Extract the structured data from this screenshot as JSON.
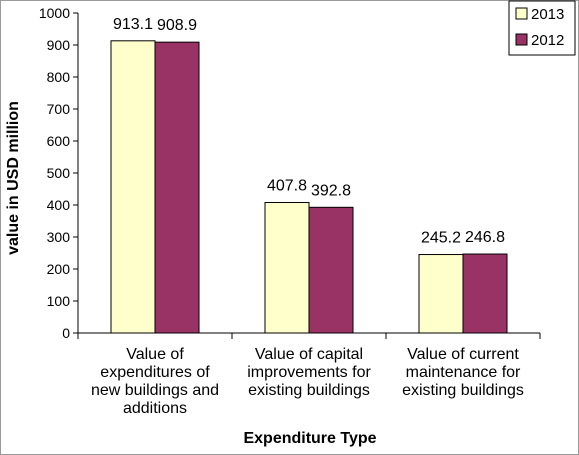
{
  "chart_data": {
    "type": "bar",
    "xlabel": "Expenditure Type",
    "ylabel": "value in USD million",
    "ylim": [
      0,
      1000
    ],
    "yticks": [
      "0",
      "100",
      "200",
      "300",
      "400",
      "500",
      "600",
      "700",
      "800",
      "900",
      "1000"
    ],
    "grid": false,
    "legend_position": "top-right",
    "categories": [
      [
        "Value of",
        "expenditures of",
        "new buildings and",
        "additions"
      ],
      [
        "Value of capital",
        "improvements for",
        "existing buildings"
      ],
      [
        "Value of current",
        "maintenance for",
        "existing buildings"
      ]
    ],
    "series": [
      {
        "name": "2013",
        "color": "#FFFFCC",
        "values": [
          913.1,
          407.8,
          245.2
        ],
        "labels": [
          "913.1",
          "407.8",
          "245.2"
        ]
      },
      {
        "name": "2012",
        "color": "#993366",
        "values": [
          908.9,
          392.8,
          246.8
        ],
        "labels": [
          "908.9",
          "392.8",
          "246.8"
        ]
      }
    ]
  }
}
